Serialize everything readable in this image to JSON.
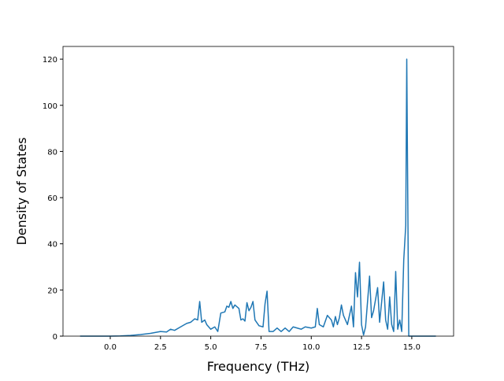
{
  "chart_data": {
    "type": "line",
    "xlabel": "Frequency (THz)",
    "ylabel": "Density of States",
    "xlim": [
      -2.35,
      17.08
    ],
    "ylim": [
      0,
      125.5
    ],
    "xticks": [
      {
        "value": 0,
        "label": "0.0"
      },
      2.5,
      {
        "value": 5,
        "label": "5.0"
      },
      7.5,
      {
        "value": 10,
        "label": "10.0"
      },
      12.5,
      {
        "value": 15,
        "label": "15.0"
      }
    ],
    "yticks": [
      0,
      20,
      40,
      60,
      80,
      100,
      120
    ],
    "series": [
      {
        "color": "#1f77b4",
        "x": [
          -1.5,
          0,
          0.5,
          1.0,
          1.5,
          2.0,
          2.5,
          2.8,
          3.0,
          3.2,
          3.5,
          3.8,
          4.0,
          4.2,
          4.35,
          4.45,
          4.55,
          4.7,
          4.8,
          5.0,
          5.2,
          5.35,
          5.5,
          5.7,
          5.8,
          5.9,
          6.0,
          6.1,
          6.2,
          6.4,
          6.5,
          6.6,
          6.7,
          6.8,
          6.9,
          7.0,
          7.1,
          7.2,
          7.4,
          7.6,
          7.7,
          7.8,
          7.9,
          8.1,
          8.3,
          8.5,
          8.7,
          8.9,
          9.1,
          9.3,
          9.5,
          9.7,
          10.0,
          10.2,
          10.3,
          10.4,
          10.6,
          10.8,
          11.0,
          11.1,
          11.2,
          11.3,
          11.4,
          11.5,
          11.6,
          11.8,
          12.0,
          12.1,
          12.2,
          12.3,
          12.4,
          12.5,
          12.6,
          12.7,
          12.9,
          13.0,
          13.1,
          13.3,
          13.4,
          13.6,
          13.7,
          13.8,
          13.9,
          14.0,
          14.1,
          14.2,
          14.3,
          14.4,
          14.5,
          14.6,
          14.7,
          14.75,
          14.85,
          16.2
        ],
        "values": [
          0,
          0,
          0.1,
          0.3,
          0.7,
          1.2,
          2,
          1.8,
          3,
          2.5,
          4,
          5.5,
          6,
          7.5,
          7,
          15,
          6,
          7,
          5,
          3,
          4,
          2,
          10,
          10.5,
          13,
          12.5,
          15,
          12,
          13.5,
          12,
          7,
          7.5,
          6.5,
          14.5,
          11,
          12.5,
          15,
          7,
          4.5,
          4,
          14,
          19.5,
          2,
          2,
          3.5,
          2,
          3.5,
          2,
          4,
          3.5,
          3,
          4,
          3.5,
          4,
          12,
          5,
          4,
          9,
          7,
          4,
          8.5,
          5,
          8,
          13.5,
          9,
          5,
          13,
          4,
          27.5,
          17,
          32,
          5,
          0.5,
          4,
          26,
          8,
          11,
          21,
          6,
          23.5,
          7,
          3,
          17,
          5,
          2,
          28,
          3,
          7,
          2,
          33,
          48,
          120,
          0,
          0
        ]
      }
    ]
  }
}
